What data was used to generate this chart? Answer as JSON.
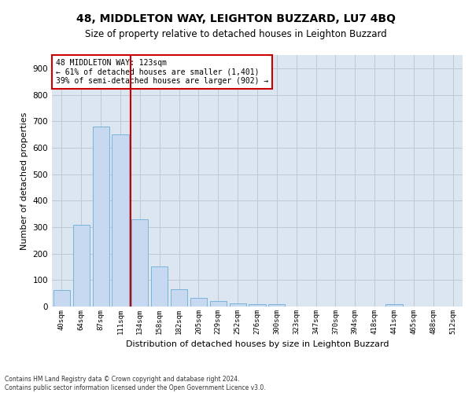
{
  "title": "48, MIDDLETON WAY, LEIGHTON BUZZARD, LU7 4BQ",
  "subtitle": "Size of property relative to detached houses in Leighton Buzzard",
  "xlabel": "Distribution of detached houses by size in Leighton Buzzard",
  "ylabel": "Number of detached properties",
  "bar_values": [
    63,
    310,
    680,
    650,
    330,
    150,
    65,
    33,
    20,
    12,
    10,
    10,
    0,
    0,
    0,
    0,
    0,
    8,
    0,
    0,
    0
  ],
  "x_labels": [
    "40sqm",
    "64sqm",
    "87sqm",
    "111sqm",
    "134sqm",
    "158sqm",
    "182sqm",
    "205sqm",
    "229sqm",
    "252sqm",
    "276sqm",
    "300sqm",
    "323sqm",
    "347sqm",
    "370sqm",
    "394sqm",
    "418sqm",
    "441sqm",
    "465sqm",
    "488sqm",
    "512sqm"
  ],
  "bar_color": "#c6d9f0",
  "bar_edge_color": "#6baed6",
  "annotation_line1": "48 MIDDLETON WAY: 123sqm",
  "annotation_line2": "← 61% of detached houses are smaller (1,401)",
  "annotation_line3": "39% of semi-detached houses are larger (902) →",
  "annotation_box_color": "white",
  "annotation_box_edge_color": "#cc0000",
  "vline_color": "#cc0000",
  "vline_x": 3.52,
  "ylim": [
    0,
    950
  ],
  "yticks": [
    0,
    100,
    200,
    300,
    400,
    500,
    600,
    700,
    800,
    900
  ],
  "grid_color": "#c0c8d4",
  "bg_color": "#dce6f1",
  "footnote1": "Contains HM Land Registry data © Crown copyright and database right 2024.",
  "footnote2": "Contains public sector information licensed under the Open Government Licence v3.0.",
  "title_fontsize": 10,
  "subtitle_fontsize": 8.5,
  "ylabel_fontsize": 8,
  "xlabel_fontsize": 8,
  "annot_fontsize": 7,
  "footnote_fontsize": 5.5
}
